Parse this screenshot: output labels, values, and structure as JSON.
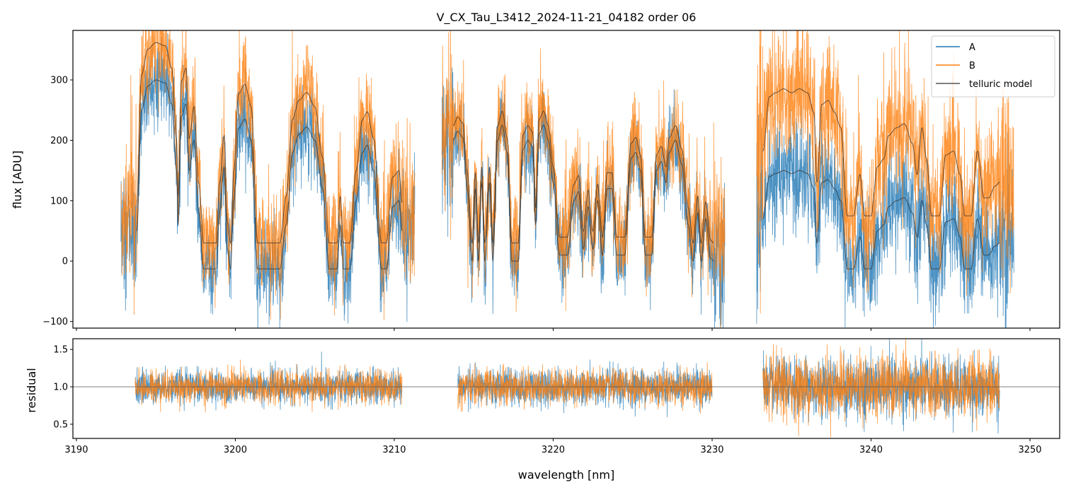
{
  "chart_data": {
    "type": "line",
    "title": "V_CX_Tau_L3412_2024-11-21_04182  order 06",
    "xlabel": "wavelength [nm]",
    "xlim": [
      3189.78,
      3251.87
    ],
    "xticks": [
      3190,
      3200,
      3210,
      3220,
      3230,
      3240,
      3250
    ],
    "top_panel": {
      "ylabel": "flux [ADU]",
      "ylim": [
        -111,
        382
      ],
      "yticks": [
        -100,
        0,
        100,
        200,
        300
      ]
    },
    "bottom_panel": {
      "ylabel": "residual",
      "ylim": [
        0.31,
        1.643
      ],
      "yticks": [
        0.5,
        1.0,
        1.5
      ],
      "yticklabels": [
        "0.5",
        "1.0",
        "1.5"
      ],
      "reference_line": 1.0
    },
    "legend": {
      "placement": "top-right",
      "entries": [
        "A",
        "B",
        "telluric model"
      ]
    },
    "colors": {
      "A": "#1f77b4",
      "B": "#ff7f0e",
      "model": "#333333"
    },
    "segments": [
      {
        "data_range": [
          3192.8,
          3211.3
        ],
        "residual_range": [
          3193.7,
          3210.5
        ],
        "noise_flux": 42,
        "noise_residual": 0.11,
        "B_from_A": {
          "offset_A": -13,
          "offset_B": 30,
          "scale": 1.06
        },
        "model_A": {
          "x": [
            3193.8,
            3194.1,
            3194.5,
            3195.0,
            3195.6,
            3196.0,
            3196.3,
            3196.4,
            3196.6,
            3196.9,
            3197.1,
            3197.4,
            3197.7,
            3198.0,
            3198.8,
            3199.0,
            3199.3,
            3199.5,
            3199.7,
            3199.9,
            3200.2,
            3200.6,
            3201.0,
            3201.4,
            3202.8,
            3203.2,
            3203.6,
            3204.0,
            3204.5,
            3205.0,
            3205.5,
            3205.9,
            3206.4,
            3206.6,
            3206.8,
            3207.2,
            3207.6,
            3208.0,
            3208.3,
            3208.7,
            3209.2,
            3209.5,
            3209.9,
            3210.3,
            3210.5
          ],
          "y": [
            50,
            250,
            290,
            300,
            295,
            260,
            150,
            60,
            240,
            260,
            150,
            200,
            80,
            -13,
            -13,
            80,
            155,
            20,
            -13,
            100,
            220,
            235,
            200,
            -13,
            -13,
            60,
            180,
            210,
            222,
            200,
            120,
            -13,
            -13,
            60,
            -13,
            -13,
            100,
            180,
            192,
            150,
            -13,
            -13,
            90,
            100,
            50
          ]
        }
      },
      {
        "data_range": [
          3213.0,
          3230.8
        ],
        "residual_range": [
          3214.0,
          3230.0
        ],
        "noise_flux": 40,
        "noise_residual": 0.12,
        "B_from_A": {
          "offset_A": 0,
          "offset_B": 30,
          "scale": 0.97
        },
        "model_A": {
          "x": [
            3213.7,
            3214.0,
            3214.3,
            3214.6,
            3214.9,
            3215.1,
            3215.3,
            3215.5,
            3215.7,
            3216.0,
            3216.2,
            3216.5,
            3216.8,
            3217.1,
            3217.4,
            3217.8,
            3218.1,
            3218.4,
            3218.7,
            3218.9,
            3219.1,
            3219.4,
            3219.7,
            3220.0,
            3220.4,
            3220.9,
            3221.3,
            3221.6,
            3221.9,
            3222.2,
            3222.5,
            3222.8,
            3223.1,
            3223.4,
            3223.7,
            3224.0,
            3224.5,
            3224.9,
            3225.2,
            3225.5,
            3225.8,
            3226.2,
            3226.5,
            3226.8,
            3227.1,
            3227.3,
            3227.7,
            3228.1,
            3228.5,
            3228.8,
            3229.1,
            3229.3,
            3229.6,
            3229.9,
            3230.1
          ],
          "y": [
            200,
            215,
            205,
            120,
            0,
            120,
            0,
            130,
            0,
            130,
            0,
            200,
            225,
            180,
            0,
            0,
            185,
            200,
            190,
            60,
            210,
            225,
            200,
            130,
            10,
            10,
            100,
            115,
            20,
            90,
            20,
            100,
            10,
            120,
            120,
            10,
            10,
            170,
            180,
            150,
            10,
            10,
            150,
            165,
            130,
            180,
            200,
            160,
            60,
            0,
            80,
            0,
            70,
            5,
            0
          ]
        }
      },
      {
        "data_range": [
          3232.8,
          3249.0
        ],
        "residual_range": [
          3233.2,
          3248.1
        ],
        "noise_flux": 55,
        "noise_residual": 0.2,
        "B_from_A": {
          "offset_A": -13,
          "offset_B": 75,
          "scale": 1.29
        },
        "model_A": {
          "x": [
            3233.2,
            3233.6,
            3234.0,
            3234.5,
            3235.0,
            3235.5,
            3236.0,
            3236.4,
            3236.6,
            3236.9,
            3237.3,
            3237.7,
            3238.1,
            3238.5,
            3238.9,
            3239.3,
            3239.6,
            3240.0,
            3240.4,
            3240.8,
            3241.1,
            3241.6,
            3242.1,
            3242.6,
            3242.9,
            3243.2,
            3243.5,
            3243.8,
            3244.3,
            3244.7,
            3245.2,
            3245.6,
            3245.9,
            3246.3,
            3246.7,
            3247.1,
            3247.4,
            3247.8,
            3248.1
          ],
          "y": [
            70,
            140,
            145,
            150,
            145,
            150,
            145,
            120,
            30,
            130,
            135,
            120,
            100,
            -13,
            -13,
            40,
            -13,
            -13,
            50,
            60,
            90,
            100,
            105,
            80,
            40,
            100,
            60,
            -13,
            -13,
            65,
            70,
            40,
            -13,
            -13,
            70,
            10,
            10,
            25,
            30
          ]
        }
      }
    ]
  }
}
